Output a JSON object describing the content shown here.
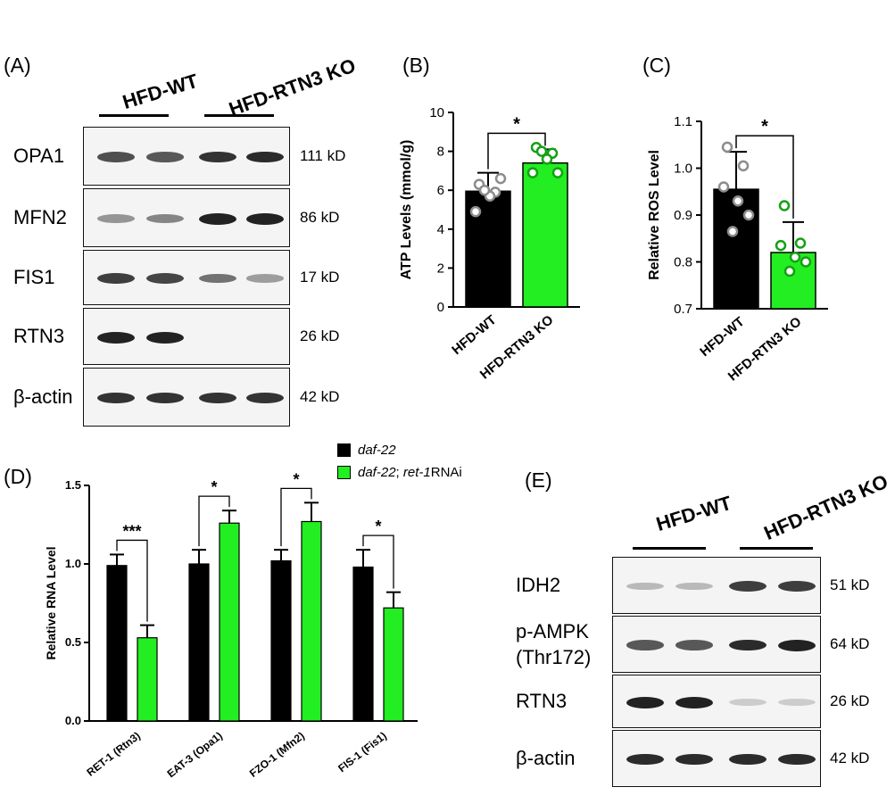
{
  "panels": {
    "A": "(A)",
    "B": "(B)",
    "C": "(C)",
    "D": "(D)",
    "E": "(E)"
  },
  "colors": {
    "wt": "#000000",
    "ko": "#22ee22",
    "ko_edge": "#14a014",
    "wt_dot": "#8c8c8c"
  },
  "blot_A": {
    "groups": [
      "HFD-WT",
      "HFD-RTN3 KO"
    ],
    "rows": [
      {
        "protein": "OPA1",
        "kd": "111 kD",
        "intensity": [
          0.75,
          0.7,
          0.9,
          0.95
        ]
      },
      {
        "protein": "MFN2",
        "kd": "86 kD",
        "intensity": [
          0.35,
          0.45,
          1.0,
          1.0
        ]
      },
      {
        "protein": "FIS1",
        "kd": "17 kD",
        "intensity": [
          0.85,
          0.8,
          0.55,
          0.3
        ]
      },
      {
        "protein": "RTN3",
        "kd": "26 kD",
        "intensity": [
          1.0,
          1.0,
          0.0,
          0.0
        ]
      },
      {
        "protein": "β-actin",
        "kd": "42 kD",
        "intensity": [
          0.9,
          0.9,
          0.9,
          0.9
        ]
      }
    ]
  },
  "blot_E": {
    "groups": [
      "HFD-WT",
      "HFD-RTN3 KO"
    ],
    "rows": [
      {
        "protein": "IDH2",
        "kd": "51 kD",
        "intensity": [
          0.15,
          0.15,
          0.85,
          0.85
        ]
      },
      {
        "protein": "p-AMPK\n(Thr172)",
        "protein_line1": "p-AMPK",
        "protein_line2": "(Thr172)",
        "kd": "64 kD",
        "intensity": [
          0.7,
          0.7,
          0.95,
          1.0
        ]
      },
      {
        "protein": "RTN3",
        "kd": "26 kD",
        "intensity": [
          1.0,
          1.0,
          0.05,
          0.05
        ]
      },
      {
        "protein": "β-actin",
        "kd": "42 kD",
        "intensity": [
          0.95,
          0.95,
          0.95,
          0.95
        ]
      }
    ]
  },
  "chart_data": [
    {
      "id": "B",
      "type": "bar",
      "categories": [
        "HFD-WT",
        "HFD-RTN3 KO"
      ],
      "values": [
        5.95,
        7.4
      ],
      "errors": [
        0.95,
        0.7
      ],
      "points": [
        [
          6.3,
          5.9,
          4.9,
          5.7,
          6.6,
          6.0
        ],
        [
          8.2,
          7.9,
          6.9,
          7.6,
          6.9,
          8.0
        ]
      ],
      "ylabel": "ATP Levels (mmol/g)",
      "ylim": [
        0,
        10
      ],
      "yticks": [
        "0",
        "2",
        "4",
        "6",
        "8",
        "10"
      ],
      "significance": "*"
    },
    {
      "id": "C",
      "type": "bar",
      "categories": [
        "HFD-WT",
        "HFD-RTN3 KO"
      ],
      "values": [
        0.955,
        0.82
      ],
      "errors": [
        0.08,
        0.065
      ],
      "points": [
        [
          1.045,
          1.005,
          0.96,
          0.93,
          0.9,
          0.865
        ],
        [
          0.92,
          0.84,
          0.835,
          0.81,
          0.8,
          0.78
        ]
      ],
      "ylabel": "Relative ROS Level",
      "ylim": [
        0.7,
        1.1
      ],
      "yticks": [
        "0.7",
        "0.8",
        "0.9",
        "1.0",
        "1.1"
      ],
      "significance": "*"
    },
    {
      "id": "D",
      "type": "bar",
      "categories": [
        "RET-1 (Rtn3)",
        "EAT-3 (Opa1)",
        "FZO-1 (Mfn2)",
        "FIS-1 (Fis1)"
      ],
      "series": [
        {
          "name": "daf-22",
          "legend_italic": "daf-22",
          "values": [
            0.99,
            1.0,
            1.02,
            0.98
          ],
          "errors": [
            0.07,
            0.09,
            0.07,
            0.11
          ]
        },
        {
          "name": "daf-22; ret-1RNAi",
          "legend_italic": "daf-22",
          "legend_sep": "; ",
          "legend_italic2": "ret-1",
          "legend_plain": "RNAi",
          "values": [
            0.53,
            1.26,
            1.27,
            0.72
          ],
          "errors": [
            0.08,
            0.08,
            0.12,
            0.1
          ]
        }
      ],
      "significance": [
        "***",
        "*",
        "*",
        "*"
      ],
      "ylabel": "Relative RNA Level",
      "ylim": [
        0.0,
        1.5
      ],
      "yticks": [
        "0.0",
        "0.5",
        "1.0",
        "1.5"
      ]
    }
  ]
}
